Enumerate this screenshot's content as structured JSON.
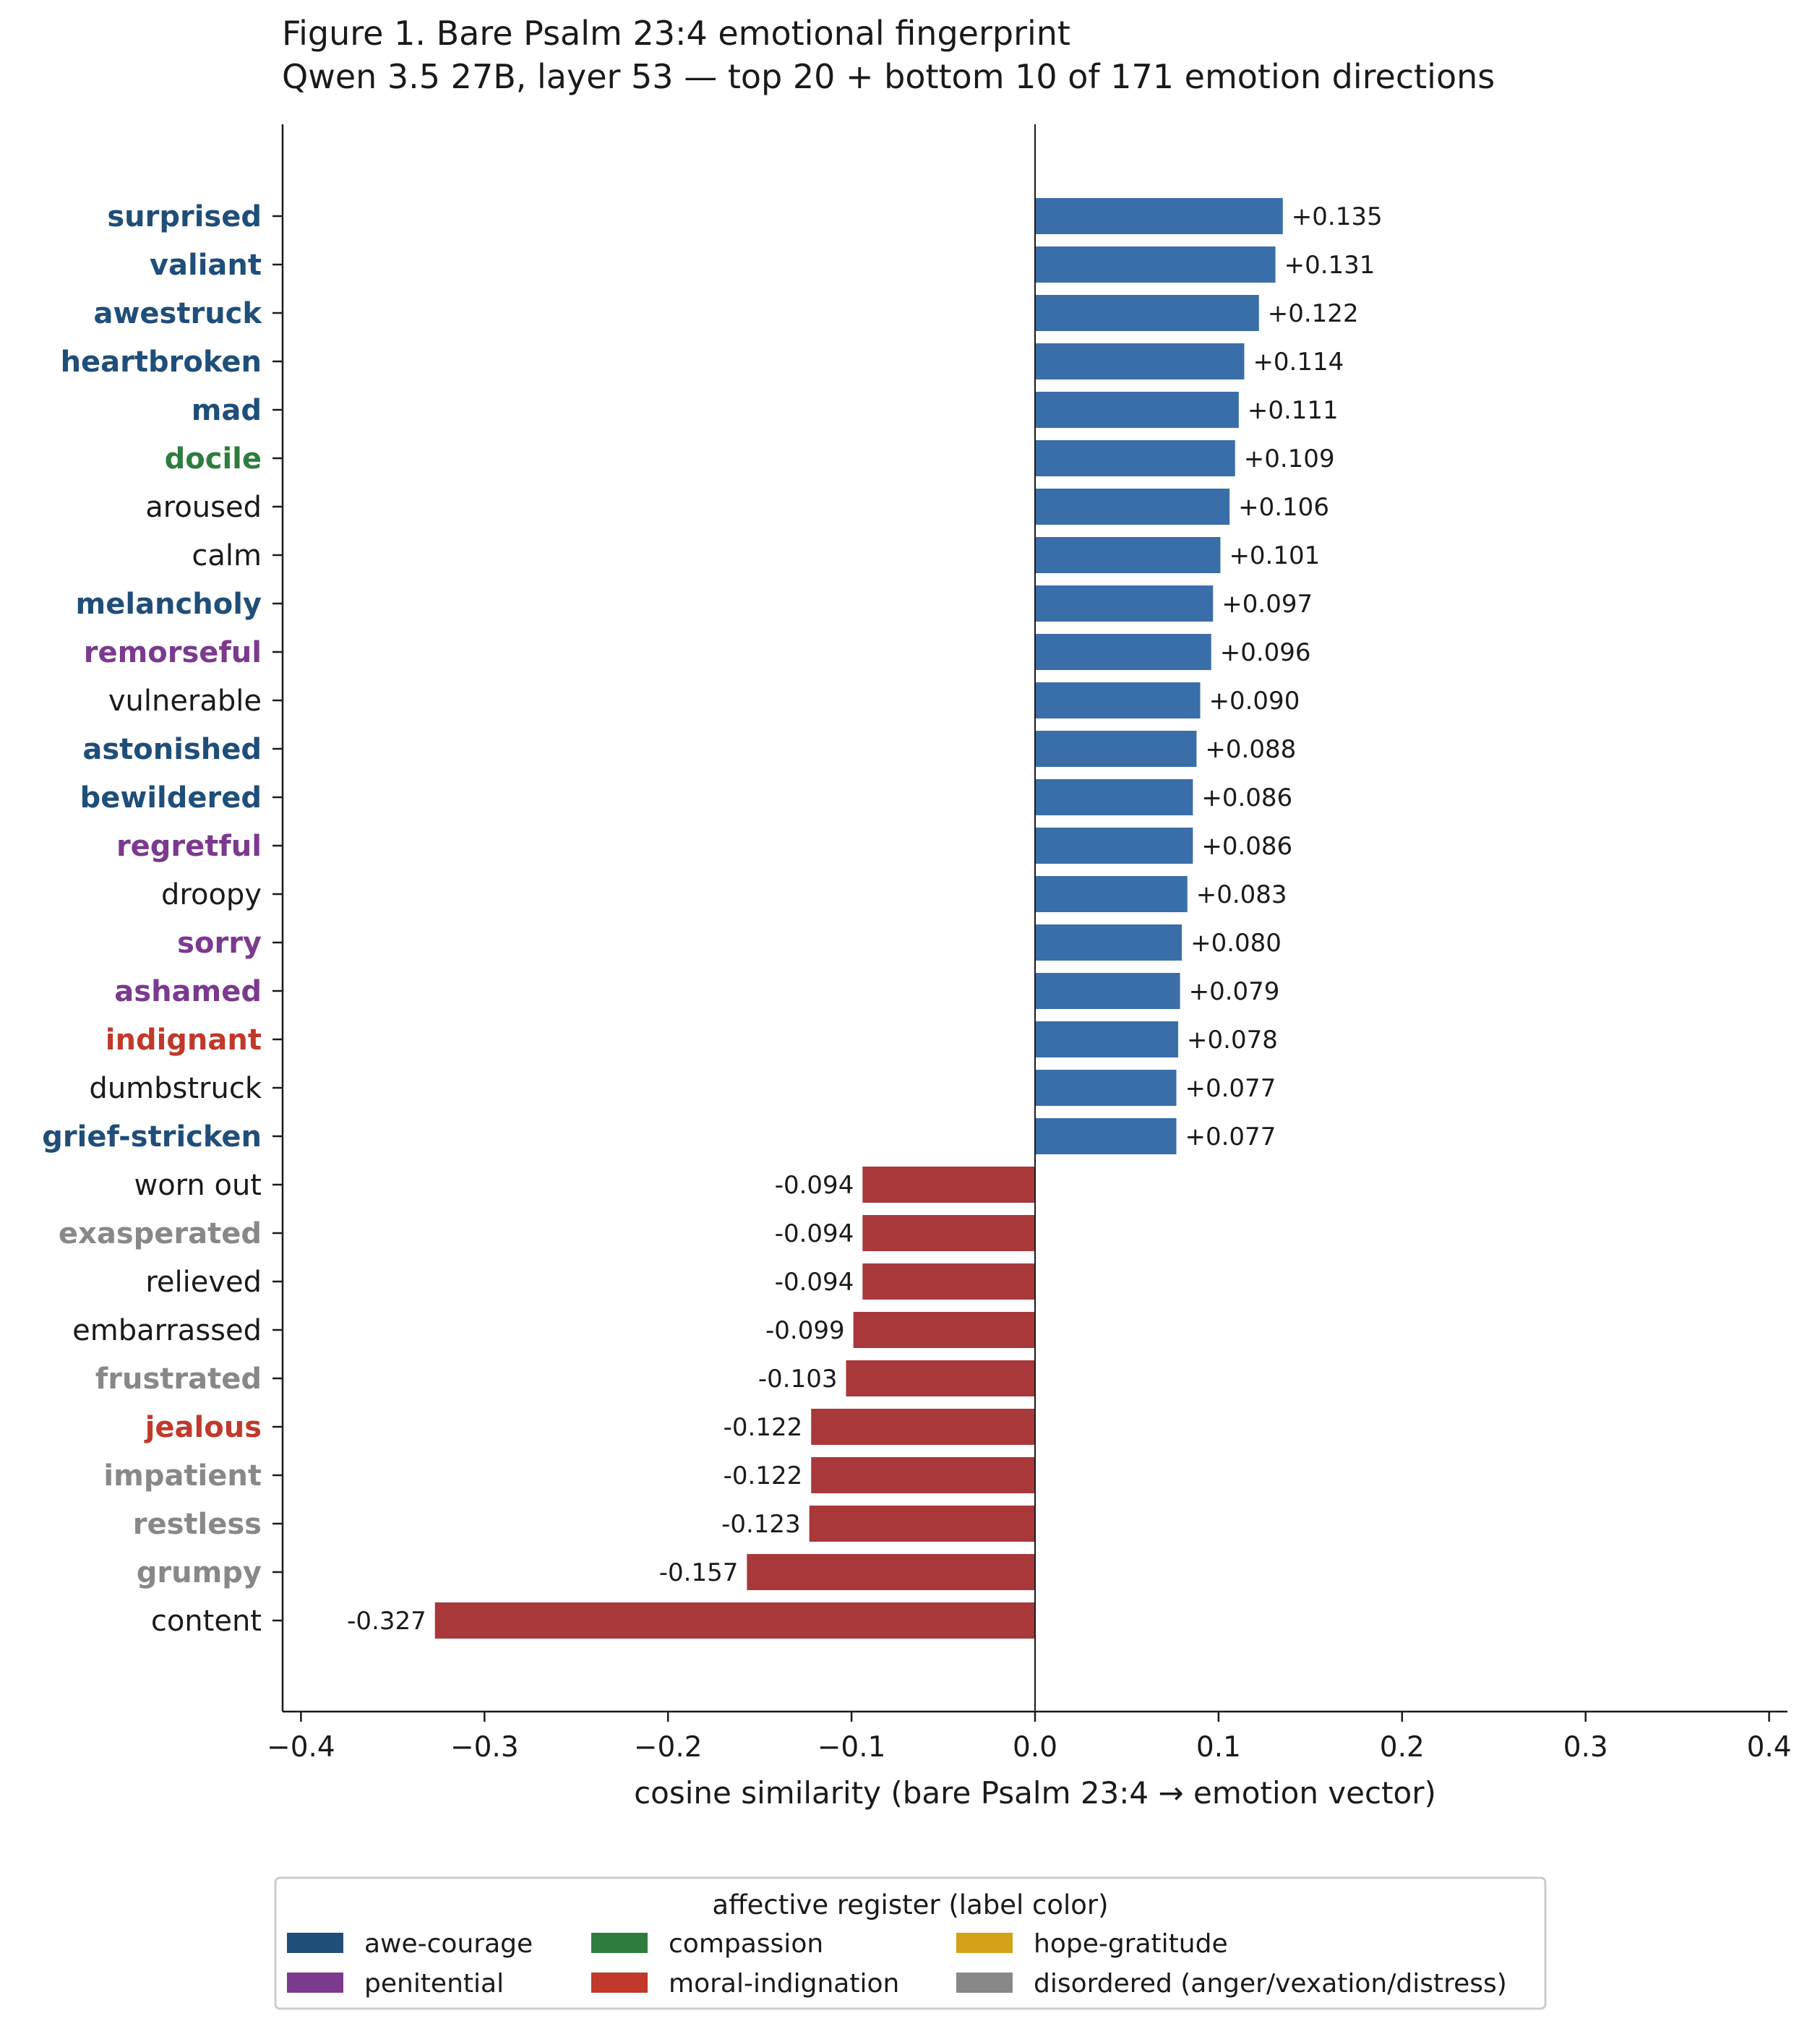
{
  "chart_data": {
    "type": "bar",
    "orientation": "horizontal",
    "title": "Figure 1.  Bare Psalm 23:4 emotional fingerprint",
    "subtitle": "Qwen 3.5 27B, layer 53 — top 20 + bottom 10 of 171 emotion directions",
    "xlabel": "cosine similarity (bare Psalm 23:4 → emotion vector)",
    "ylabel": "",
    "xlim": [
      -0.41,
      0.41
    ],
    "xticks": [
      -0.4,
      -0.3,
      -0.2,
      -0.1,
      0.0,
      0.1,
      0.2,
      0.3,
      0.4
    ],
    "xtick_labels": [
      "−0.4",
      "−0.3",
      "−0.2",
      "−0.1",
      "0.0",
      "0.1",
      "0.2",
      "0.3",
      "0.4"
    ],
    "grid": false,
    "bar_colors": {
      "positive": "#3a6ea8",
      "negative": "#a8383a"
    },
    "categories": [
      "surprised",
      "valiant",
      "awestruck",
      "heartbroken",
      "mad",
      "docile",
      "aroused",
      "calm",
      "melancholy",
      "remorseful",
      "vulnerable",
      "astonished",
      "bewildered",
      "regretful",
      "droopy",
      "sorry",
      "ashamed",
      "indignant",
      "dumbstruck",
      "grief-stricken",
      "worn out",
      "exasperated",
      "relieved",
      "embarrassed",
      "frustrated",
      "jealous",
      "impatient",
      "restless",
      "grumpy",
      "content"
    ],
    "values": [
      0.135,
      0.131,
      0.122,
      0.114,
      0.111,
      0.109,
      0.106,
      0.101,
      0.097,
      0.096,
      0.09,
      0.088,
      0.086,
      0.086,
      0.083,
      0.08,
      0.079,
      0.078,
      0.077,
      0.077,
      -0.094,
      -0.094,
      -0.094,
      -0.099,
      -0.103,
      -0.122,
      -0.122,
      -0.123,
      -0.157,
      -0.327
    ],
    "value_labels": [
      "+0.135",
      "+0.131",
      "+0.122",
      "+0.114",
      "+0.111",
      "+0.109",
      "+0.106",
      "+0.101",
      "+0.097",
      "+0.096",
      "+0.090",
      "+0.088",
      "+0.086",
      "+0.086",
      "+0.083",
      "+0.080",
      "+0.079",
      "+0.078",
      "+0.077",
      "+0.077",
      "-0.094",
      "-0.094",
      "-0.094",
      "-0.099",
      "-0.103",
      "-0.122",
      "-0.122",
      "-0.123",
      "-0.157",
      "-0.327"
    ],
    "label_registers": [
      "awe-courage",
      "awe-courage",
      "awe-courage",
      "awe-courage",
      "awe-courage",
      "compassion",
      "",
      "",
      "awe-courage",
      "penitential",
      "",
      "awe-courage",
      "awe-courage",
      "penitential",
      "",
      "penitential",
      "penitential",
      "moral-indignation",
      "",
      "awe-courage",
      "",
      "disordered",
      "",
      "",
      "disordered",
      "moral-indignation",
      "disordered",
      "disordered",
      "disordered",
      ""
    ],
    "legend": {
      "title": "affective register (label color)",
      "placement": "bottom-center",
      "entries": [
        {
          "key": "awe-courage",
          "label": "awe-courage",
          "color": "#1f4e79"
        },
        {
          "key": "penitential",
          "label": "penitential",
          "color": "#7b3a8e"
        },
        {
          "key": "compassion",
          "label": "compassion",
          "color": "#2e7d3e"
        },
        {
          "key": "moral-indignation",
          "label": "moral-indignation",
          "color": "#c0392b"
        },
        {
          "key": "hope-gratitude",
          "label": "hope-gratitude",
          "color": "#d4a017"
        },
        {
          "key": "disordered",
          "label": "disordered (anger/vexation/distress)",
          "color": "#888888"
        }
      ]
    },
    "default_label_color": "#1a1a1a"
  }
}
